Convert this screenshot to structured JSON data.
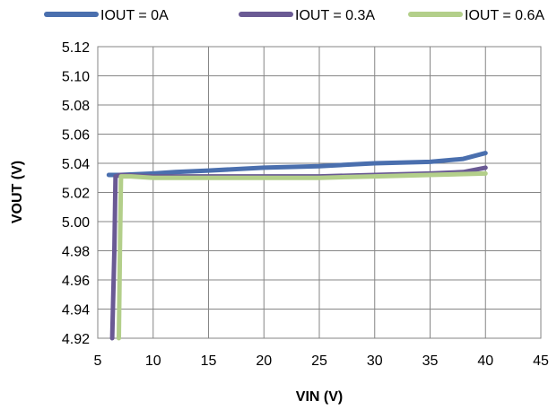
{
  "chart_data": {
    "type": "line",
    "xlabel": "VIN (V)",
    "ylabel": "VOUT (V)",
    "xlim": [
      5,
      45
    ],
    "ylim": [
      4.92,
      5.12
    ],
    "xticks": [
      5,
      10,
      15,
      20,
      25,
      30,
      35,
      40,
      45
    ],
    "yticks": [
      4.92,
      4.94,
      4.96,
      4.98,
      5.0,
      5.02,
      5.04,
      5.06,
      5.08,
      5.1,
      5.12
    ],
    "grid": true,
    "legend_position": "top",
    "series": [
      {
        "name": "IOUT = 0A",
        "color": "#4a6fae",
        "x": [
          6.0,
          7,
          10,
          12,
          15,
          20,
          25,
          30,
          35,
          38,
          40
        ],
        "y": [
          5.032,
          5.032,
          5.033,
          5.034,
          5.035,
          5.037,
          5.038,
          5.04,
          5.041,
          5.043,
          5.047
        ]
      },
      {
        "name": "IOUT = 0.3A",
        "color": "#6a5a94",
        "x": [
          6.3,
          6.5,
          6.6,
          7,
          10,
          15,
          20,
          25,
          30,
          35,
          38,
          40
        ],
        "y": [
          4.92,
          4.98,
          5.031,
          5.032,
          5.031,
          5.031,
          5.031,
          5.031,
          5.032,
          5.033,
          5.034,
          5.037
        ]
      },
      {
        "name": "IOUT = 0.6A",
        "color": "#b3cf8a",
        "x": [
          6.9,
          7.0,
          7.1,
          8,
          10,
          15,
          20,
          25,
          30,
          35,
          40
        ],
        "y": [
          4.92,
          4.98,
          5.031,
          5.031,
          5.03,
          5.03,
          5.03,
          5.03,
          5.031,
          5.032,
          5.033
        ]
      }
    ]
  }
}
